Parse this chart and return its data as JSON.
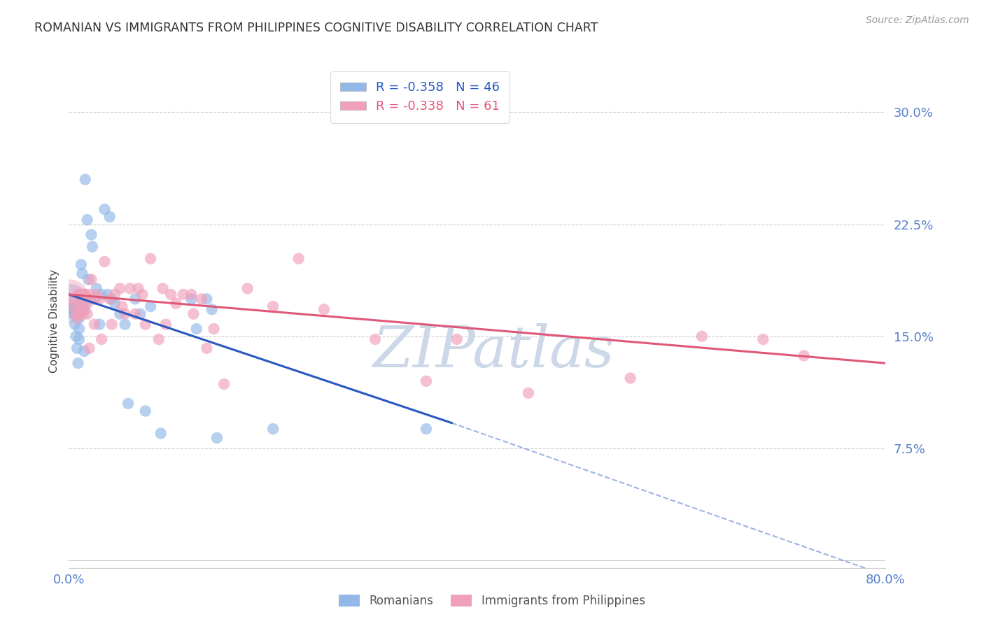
{
  "title": "ROMANIAN VS IMMIGRANTS FROM PHILIPPINES COGNITIVE DISABILITY CORRELATION CHART",
  "source": "Source: ZipAtlas.com",
  "ylabel": "Cognitive Disability",
  "xlim": [
    0.0,
    0.8
  ],
  "ylim": [
    -0.005,
    0.325
  ],
  "ytick_vals": [
    0.075,
    0.15,
    0.225,
    0.3
  ],
  "ytick_labels": [
    "7.5%",
    "15.0%",
    "22.5%",
    "30.0%"
  ],
  "xtick_vals": [
    0.0,
    0.8
  ],
  "xtick_labels": [
    "0.0%",
    "80.0%"
  ],
  "legend_r_romanian": "-0.358",
  "legend_n_romanian": "46",
  "legend_r_philippines": "-0.338",
  "legend_n_philippines": "61",
  "romanian_color": "#92b8e8",
  "philippines_color": "#f0a0ba",
  "trendline_romanian_color": "#2858c0",
  "trendline_philippines_color": "#e05878",
  "watermark": "ZIPatlas",
  "romanians_x": [
    0.002,
    0.004,
    0.005,
    0.006,
    0.007,
    0.008,
    0.009,
    0.01,
    0.01,
    0.01,
    0.01,
    0.012,
    0.013,
    0.014,
    0.015,
    0.015,
    0.016,
    0.018,
    0.019,
    0.02,
    0.022,
    0.023,
    0.025,
    0.027,
    0.03,
    0.032,
    0.035,
    0.038,
    0.04,
    0.042,
    0.045,
    0.05,
    0.055,
    0.058,
    0.065,
    0.07,
    0.075,
    0.08,
    0.09,
    0.12,
    0.125,
    0.135,
    0.14,
    0.145,
    0.2,
    0.35
  ],
  "romanians_y": [
    0.17,
    0.168,
    0.165,
    0.158,
    0.15,
    0.142,
    0.132,
    0.172,
    0.162,
    0.155,
    0.148,
    0.198,
    0.192,
    0.175,
    0.168,
    0.14,
    0.255,
    0.228,
    0.188,
    0.175,
    0.218,
    0.21,
    0.175,
    0.182,
    0.158,
    0.178,
    0.235,
    0.178,
    0.23,
    0.175,
    0.172,
    0.165,
    0.158,
    0.105,
    0.175,
    0.165,
    0.1,
    0.17,
    0.085,
    0.175,
    0.155,
    0.175,
    0.168,
    0.082,
    0.088,
    0.088
  ],
  "philippines_x": [
    0.003,
    0.005,
    0.007,
    0.008,
    0.009,
    0.01,
    0.01,
    0.01,
    0.012,
    0.013,
    0.014,
    0.015,
    0.015,
    0.016,
    0.018,
    0.018,
    0.02,
    0.02,
    0.022,
    0.025,
    0.025,
    0.027,
    0.03,
    0.032,
    0.035,
    0.04,
    0.042,
    0.045,
    0.05,
    0.052,
    0.055,
    0.06,
    0.065,
    0.068,
    0.072,
    0.075,
    0.08,
    0.088,
    0.092,
    0.095,
    0.1,
    0.105,
    0.112,
    0.12,
    0.122,
    0.13,
    0.135,
    0.142,
    0.152,
    0.175,
    0.2,
    0.225,
    0.25,
    0.3,
    0.35,
    0.38,
    0.45,
    0.55,
    0.62,
    0.68,
    0.72
  ],
  "philippines_y": [
    0.175,
    0.17,
    0.165,
    0.162,
    0.178,
    0.178,
    0.17,
    0.165,
    0.172,
    0.178,
    0.165,
    0.178,
    0.168,
    0.178,
    0.172,
    0.165,
    0.178,
    0.142,
    0.188,
    0.175,
    0.158,
    0.178,
    0.175,
    0.148,
    0.2,
    0.175,
    0.158,
    0.178,
    0.182,
    0.17,
    0.165,
    0.182,
    0.165,
    0.182,
    0.178,
    0.158,
    0.202,
    0.148,
    0.182,
    0.158,
    0.178,
    0.172,
    0.178,
    0.178,
    0.165,
    0.175,
    0.142,
    0.155,
    0.118,
    0.182,
    0.17,
    0.202,
    0.168,
    0.148,
    0.12,
    0.148,
    0.112,
    0.122,
    0.15,
    0.148,
    0.137
  ],
  "trend_rom_x0": 0.0,
  "trend_rom_y0": 0.178,
  "trend_rom_x1_solid": 0.375,
  "trend_rom_y1_solid": 0.092,
  "trend_rom_x1_dash": 0.8,
  "trend_rom_y1_dash": -0.01,
  "trend_phil_x0": 0.0,
  "trend_phil_y0": 0.178,
  "trend_phil_x1": 0.8,
  "trend_phil_y1": 0.132,
  "background_color": "#ffffff",
  "grid_color": "#cccccc",
  "tick_color": "#5580cc",
  "title_fontsize": 12.5,
  "axis_label_fontsize": 11,
  "tick_fontsize": 13,
  "legend_fontsize": 13,
  "source_fontsize": 10,
  "watermark_color": "#ccd8e8",
  "watermark_fontsize": 60
}
